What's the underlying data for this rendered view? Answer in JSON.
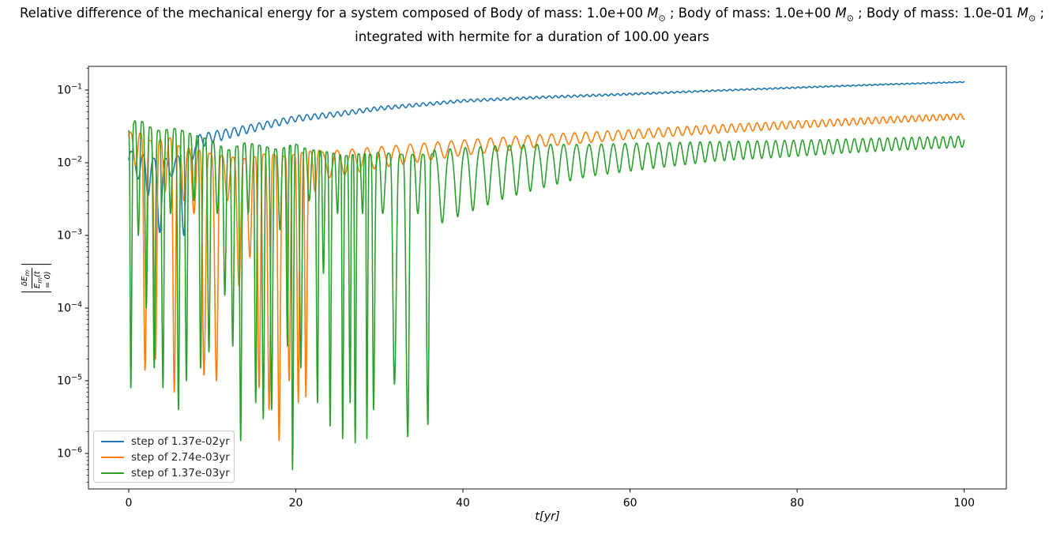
{
  "chart_data": {
    "type": "line",
    "title_line1": "Relative difference of the mechanical energy for a system composed of Body of mass: 1.0e+00 M⊙ ; Body of mass: 1.0e+00 M⊙ ; Body of mass: 1.0e-01 M⊙ ;",
    "title_line2": "integrated with hermite for a duration of 100.00 years",
    "xlabel": "t[yr]",
    "ylabel_numerator": "δE_m",
    "ylabel_denominator": "E_m(t = 0)",
    "x_ticks": [
      0,
      20,
      40,
      60,
      80,
      100
    ],
    "y_tick_exponents": [
      -1,
      -2,
      -3,
      -4,
      -5,
      -6
    ],
    "xlim": [
      -4.82,
      105.04
    ],
    "ylim_log10": [
      -6.489,
      -0.674
    ],
    "grid": false,
    "legend_position": "lower left",
    "series": [
      {
        "name": "step of 1.37e-02yr",
        "color": "#1f77b4",
        "chaos_until": 8.0,
        "chaos_peaks": [
          [
            0,
            0.0145
          ],
          [
            1,
            0.014
          ],
          [
            2,
            0.0125
          ],
          [
            3,
            0.0115
          ],
          [
            4,
            0.011
          ],
          [
            5,
            0.012
          ],
          [
            6,
            0.0125
          ],
          [
            7,
            0.014
          ],
          [
            8,
            0.017
          ]
        ],
        "chaos_dips": [
          [
            -0.5,
            0.004
          ],
          [
            1.15,
            0.006
          ],
          [
            2.3,
            0.0035
          ],
          [
            3.7,
            0.0011
          ],
          [
            5.1,
            0.0065
          ],
          [
            6.6,
            0.001
          ],
          [
            7.6,
            0.011
          ],
          [
            8.6,
            0.013
          ]
        ],
        "trend": [
          [
            8,
            0.02
          ],
          [
            10,
            0.0235
          ],
          [
            15,
            0.031
          ],
          [
            20,
            0.041
          ],
          [
            25,
            0.047
          ],
          [
            30,
            0.056
          ],
          [
            40,
            0.071
          ],
          [
            50,
            0.08
          ],
          [
            60,
            0.088
          ],
          [
            70,
            0.098
          ],
          [
            80,
            0.108
          ],
          [
            90,
            0.119
          ],
          [
            100,
            0.129
          ]
        ],
        "osc_amp_dec": [
          [
            8,
            0.07
          ],
          [
            12,
            0.05
          ],
          [
            20,
            0.035
          ],
          [
            40,
            0.018
          ],
          [
            70,
            0.01
          ],
          [
            100,
            0.006
          ]
        ],
        "osc_dip_extra_dec": [
          [
            8,
            0.05
          ],
          [
            15,
            0.02
          ],
          [
            30,
            0
          ],
          [
            100,
            0
          ]
        ],
        "osc_period_yr": [
          [
            8,
            1.05
          ],
          [
            30,
            0.85
          ],
          [
            60,
            0.72
          ],
          [
            100,
            0.62
          ]
        ],
        "osc_theta0": -1.5
      },
      {
        "name": "step of 2.74e-03yr",
        "color": "#ff7f0e",
        "chaos_until": 23.0,
        "chaos_peaks": [
          [
            0,
            0.026
          ],
          [
            1,
            0.028
          ],
          [
            2,
            0.022
          ],
          [
            3,
            0.019
          ],
          [
            4,
            0.021
          ],
          [
            5,
            0.022
          ],
          [
            6,
            0.017
          ],
          [
            7,
            0.016
          ],
          [
            8,
            0.015
          ],
          [
            9,
            0.0145
          ],
          [
            10,
            0.013
          ],
          [
            11,
            0.0125
          ],
          [
            12,
            0.013
          ],
          [
            13,
            0.011
          ],
          [
            14,
            0.0115
          ],
          [
            15,
            0.012
          ],
          [
            16,
            0.013
          ],
          [
            17,
            0.0135
          ],
          [
            18,
            0.012
          ],
          [
            19,
            0.0125
          ],
          [
            20,
            0.013
          ],
          [
            21,
            0.014
          ],
          [
            22,
            0.0145
          ],
          [
            23,
            0.015
          ]
        ],
        "chaos_dips": [
          [
            -0.5,
            0.006
          ],
          [
            0.85,
            0.009
          ],
          [
            1.95,
            1.4e-05
          ],
          [
            3.2,
            2e-05
          ],
          [
            4.35,
            0.004
          ],
          [
            5.45,
            7e-06
          ],
          [
            6.6,
            0.003
          ],
          [
            7.8,
            0.002
          ],
          [
            9.0,
            1.2e-05
          ],
          [
            10.5,
            1e-05
          ],
          [
            11.8,
            0.003
          ],
          [
            13.2,
            0.0002
          ],
          [
            14.5,
            0.0005
          ],
          [
            15.6,
            8e-06
          ],
          [
            16.8,
            4e-06
          ],
          [
            18.0,
            1.5e-06
          ],
          [
            19.2,
            1e-05
          ],
          [
            20.3,
            5e-06
          ],
          [
            21.2,
            6e-06
          ],
          [
            22.3,
            0.004
          ],
          [
            23.3,
            0.006
          ]
        ],
        "trend": [
          [
            23,
            0.0105
          ],
          [
            30,
            0.0127
          ],
          [
            35,
            0.0145
          ],
          [
            40,
            0.0165
          ],
          [
            50,
            0.0205
          ],
          [
            60,
            0.0245
          ],
          [
            70,
            0.029
          ],
          [
            80,
            0.0335
          ],
          [
            90,
            0.0385
          ],
          [
            100,
            0.0435
          ]
        ],
        "osc_amp_dec": [
          [
            23,
            0.13
          ],
          [
            40,
            0.095
          ],
          [
            60,
            0.065
          ],
          [
            80,
            0.05
          ],
          [
            100,
            0.038
          ]
        ],
        "osc_dip_extra_dec": [
          [
            23,
            0.12
          ],
          [
            30,
            0.06
          ],
          [
            40,
            0.02
          ],
          [
            55,
            0
          ],
          [
            100,
            0
          ]
        ],
        "osc_period_yr": [
          [
            23,
            1.85
          ],
          [
            45,
            1.5
          ],
          [
            70,
            1.05
          ],
          [
            100,
            0.8
          ]
        ],
        "osc_theta0": 1.2
      },
      {
        "name": "step of 1.37e-03yr",
        "color": "#2ca02c",
        "chaos_until": 36.5,
        "chaos_peaks": [
          [
            0,
            0.028
          ],
          [
            1,
            0.042
          ],
          [
            2,
            0.034
          ],
          [
            3,
            0.029
          ],
          [
            4,
            0.027
          ],
          [
            5,
            0.03
          ],
          [
            6,
            0.029
          ],
          [
            7,
            0.026
          ],
          [
            8,
            0.024
          ],
          [
            9,
            0.022
          ],
          [
            10,
            0.02
          ],
          [
            11,
            0.017
          ],
          [
            12,
            0.015
          ],
          [
            13,
            0.017
          ],
          [
            14,
            0.019
          ],
          [
            15,
            0.018
          ],
          [
            16,
            0.017
          ],
          [
            17,
            0.016
          ],
          [
            18,
            0.015
          ],
          [
            19,
            0.017
          ],
          [
            20,
            0.018
          ],
          [
            21,
            0.016
          ],
          [
            22,
            0.015
          ],
          [
            23,
            0.0145
          ],
          [
            24,
            0.014
          ],
          [
            25,
            0.013
          ],
          [
            26,
            0.0125
          ],
          [
            27,
            0.013
          ],
          [
            28,
            0.0135
          ],
          [
            29,
            0.013
          ],
          [
            30,
            0.014
          ],
          [
            31,
            0.0135
          ],
          [
            32,
            0.013
          ],
          [
            33,
            0.013
          ],
          [
            34,
            0.013
          ],
          [
            35,
            0.013
          ],
          [
            36,
            0.013
          ],
          [
            37,
            0.014
          ]
        ],
        "chaos_dips": [
          [
            -0.4,
            0.003
          ],
          [
            0.25,
            8e-06
          ],
          [
            1.15,
            0.001
          ],
          [
            2.1,
            0.0001
          ],
          [
            3.05,
            1.5e-05
          ],
          [
            4.1,
            8e-06
          ],
          [
            5.0,
            0.002
          ],
          [
            5.95,
            4e-06
          ],
          [
            6.9,
            1e-05
          ],
          [
            7.8,
            0.003
          ],
          [
            8.6,
            1.5e-05
          ],
          [
            9.6,
            2.5e-05
          ],
          [
            10.6,
            0.002
          ],
          [
            11.5,
            0.00015
          ],
          [
            12.45,
            3e-05
          ],
          [
            13.4,
            1.5e-06
          ],
          [
            14.3,
            0.002
          ],
          [
            15.2,
            5e-06
          ],
          [
            16.1,
            3e-06
          ],
          [
            17.1,
            4e-06
          ],
          [
            18.1,
            0.0012
          ],
          [
            19.0,
            3e-05
          ],
          [
            19.6,
            6e-07
          ],
          [
            20.6,
            1.5e-05
          ],
          [
            21.6,
            0.003
          ],
          [
            22.6,
            5e-06
          ],
          [
            23.3,
            0.0003
          ],
          [
            24.1,
            2.4e-06
          ],
          [
            25.0,
            0.002
          ],
          [
            25.6,
            1.6e-06
          ],
          [
            26.5,
            5e-06
          ],
          [
            27.1,
            1.4e-06
          ],
          [
            28.0,
            0.002
          ],
          [
            28.5,
            1.6e-06
          ],
          [
            29.3,
            4e-06
          ],
          [
            30.4,
            0.002
          ],
          [
            31.8,
            9e-06
          ],
          [
            33.4,
            1.7e-06
          ],
          [
            34.6,
            0.002
          ],
          [
            35.8,
            2.5e-06
          ],
          [
            36.9,
            0.003
          ]
        ],
        "trend": [
          [
            36.5,
            0.0075
          ],
          [
            40,
            0.0085
          ],
          [
            45,
            0.01
          ],
          [
            50,
            0.0112
          ],
          [
            60,
            0.013
          ],
          [
            70,
            0.0148
          ],
          [
            80,
            0.0162
          ],
          [
            90,
            0.018
          ],
          [
            100,
            0.0195
          ]
        ],
        "osc_amp_dec": [
          [
            36.5,
            0.3
          ],
          [
            45,
            0.24
          ],
          [
            55,
            0.17
          ],
          [
            70,
            0.12
          ],
          [
            85,
            0.09
          ],
          [
            100,
            0.075
          ]
        ],
        "osc_dip_extra_dec": [
          [
            36.5,
            0.45
          ],
          [
            45,
            0.25
          ],
          [
            55,
            0.1
          ],
          [
            70,
            0.03
          ],
          [
            100,
            0
          ]
        ],
        "osc_period_yr": [
          [
            36.5,
            1.9
          ],
          [
            50,
            1.6
          ],
          [
            70,
            1.15
          ],
          [
            100,
            0.9
          ]
        ],
        "osc_theta0": 1.3
      }
    ]
  }
}
